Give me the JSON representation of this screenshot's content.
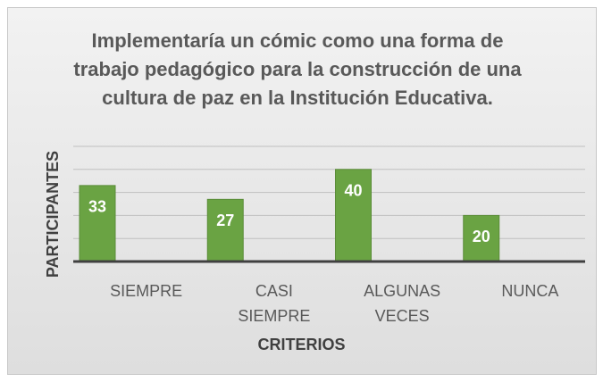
{
  "chart_data": {
    "type": "bar",
    "title": "Implementaría un cómic como una forma de trabajo pedagógico para la construcción de una cultura de paz en la Institución Educativa.",
    "categories": [
      "SIEMPRE",
      "CASI SIEMPRE",
      "ALGUNAS VECES",
      "NUNCA"
    ],
    "values": [
      33,
      27,
      40,
      20
    ],
    "color": "#6aa343",
    "xlabel": "CRITERIOS",
    "ylabel": "PARTICIPANTES",
    "ylim": [
      0,
      50
    ],
    "yticks": [
      0,
      10,
      20,
      30,
      40,
      50
    ],
    "grid": true
  }
}
